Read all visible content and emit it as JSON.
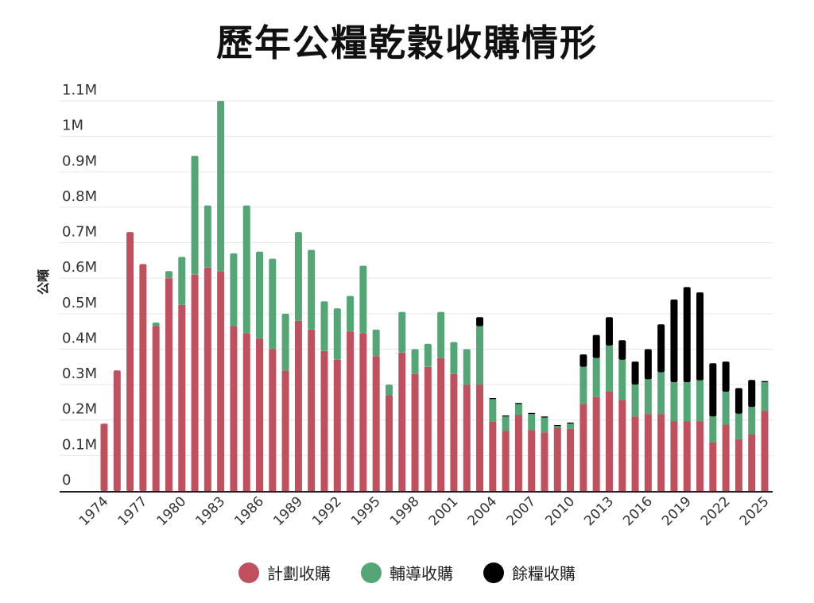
{
  "chart_data": {
    "type": "bar",
    "stacked": true,
    "title": "歷年公糧乾穀收購情形",
    "xlabel": "",
    "ylabel": "公噸",
    "ylim": [
      0,
      1.1
    ],
    "y_unit": "M",
    "yticks": [
      "0",
      "0.1M",
      "0.2M",
      "0.3M",
      "0.4M",
      "0.5M",
      "0.6M",
      "0.7M",
      "0.8M",
      "0.9M",
      "1M",
      "1.1M"
    ],
    "grid": true,
    "legend_position": "bottom",
    "categories": [
      1974,
      1975,
      1976,
      1977,
      1978,
      1979,
      1980,
      1981,
      1982,
      1983,
      1984,
      1985,
      1986,
      1987,
      1988,
      1989,
      1990,
      1991,
      1992,
      1993,
      1994,
      1995,
      1996,
      1997,
      1998,
      1999,
      2000,
      2001,
      2002,
      2003,
      2004,
      2005,
      2006,
      2007,
      2008,
      2009,
      2010,
      2011,
      2012,
      2013,
      2014,
      2015,
      2016,
      2017,
      2018,
      2019,
      2020,
      2021,
      2022,
      2023,
      2024,
      2025
    ],
    "xtick_labels": [
      "1974",
      "1977",
      "1980",
      "1983",
      "1986",
      "1989",
      "1992",
      "1995",
      "1998",
      "2001",
      "2004",
      "2007",
      "2010",
      "2013",
      "2016",
      "2019",
      "2022",
      "2025"
    ],
    "series": [
      {
        "name": "計劃收購",
        "color": "#c1505f",
        "values": [
          0.19,
          0.34,
          0.73,
          0.64,
          0.465,
          0.6,
          0.525,
          0.61,
          0.63,
          0.62,
          0.465,
          0.445,
          0.43,
          0.4,
          0.34,
          0.48,
          0.455,
          0.395,
          0.37,
          0.45,
          0.445,
          0.38,
          0.27,
          0.39,
          0.33,
          0.35,
          0.375,
          0.33,
          0.3,
          0.3,
          0.195,
          0.17,
          0.215,
          0.172,
          0.165,
          0.178,
          0.175,
          0.245,
          0.265,
          0.28,
          0.257,
          0.21,
          0.217,
          0.217,
          0.197,
          0.197,
          0.197,
          0.137,
          0.187,
          0.146,
          0.16,
          0.226
        ]
      },
      {
        "name": "輔導收購",
        "color": "#55a676",
        "values": [
          0,
          0,
          0,
          0,
          0.01,
          0.02,
          0.135,
          0.335,
          0.175,
          0.48,
          0.205,
          0.36,
          0.245,
          0.255,
          0.16,
          0.25,
          0.225,
          0.14,
          0.145,
          0.1,
          0.19,
          0.075,
          0.03,
          0.115,
          0.07,
          0.065,
          0.13,
          0.09,
          0.1,
          0.165,
          0.064,
          0.04,
          0.03,
          0.045,
          0.042,
          0.006,
          0.015,
          0.105,
          0.11,
          0.13,
          0.113,
          0.09,
          0.098,
          0.118,
          0.11,
          0.11,
          0.115,
          0.073,
          0.093,
          0.072,
          0.077,
          0.081
        ]
      },
      {
        "name": "餘糧收購",
        "color": "#000000",
        "values": [
          0,
          0,
          0,
          0,
          0,
          0,
          0,
          0,
          0,
          0,
          0,
          0,
          0,
          0,
          0,
          0,
          0,
          0,
          0,
          0,
          0,
          0,
          0,
          0,
          0,
          0,
          0,
          0,
          0,
          0.025,
          0.003,
          0.003,
          0.003,
          0.003,
          0.003,
          0.002,
          0.003,
          0.035,
          0.065,
          0.08,
          0.055,
          0.065,
          0.085,
          0.135,
          0.233,
          0.268,
          0.248,
          0.15,
          0.085,
          0.072,
          0.076,
          0.003
        ]
      }
    ]
  }
}
